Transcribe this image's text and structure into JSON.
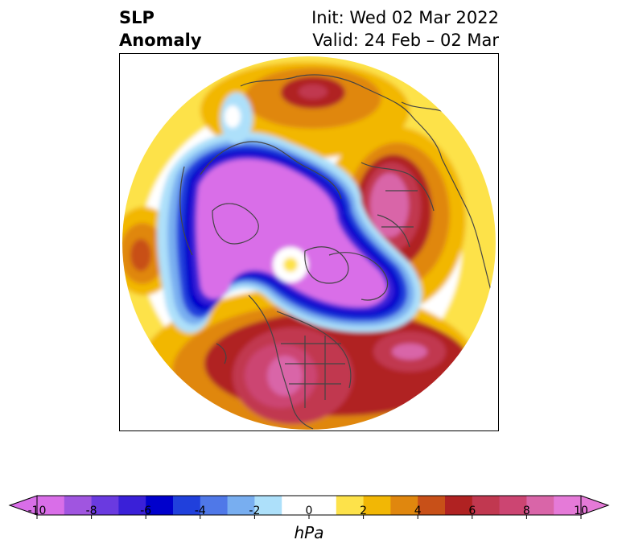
{
  "title": {
    "left_line1": "SLP",
    "left_line2": "Anomaly",
    "right_line1": "Init: Wed 02 Mar 2022",
    "right_line2": "Valid: 24 Feb – 02 Mar"
  },
  "colorbar": {
    "units": "hPa",
    "ticks": [
      "-10",
      "-8",
      "-6",
      "-4",
      "-2",
      "0",
      "2",
      "4",
      "6",
      "8",
      "10"
    ],
    "bin_colors": [
      "#d96ee8",
      "#a055e0",
      "#6a3ae0",
      "#3a20d8",
      "#0000cc",
      "#2040dc",
      "#4f78e8",
      "#78aef0",
      "#ade0fa",
      "#ffffff",
      "#ffffff",
      "#fde24a",
      "#f2b705",
      "#e0870e",
      "#c85018",
      "#b02222",
      "#c13850",
      "#cc4572",
      "#d965a8",
      "#e57ad8"
    ],
    "extend": "both"
  },
  "map": {
    "projection": "north-polar-stereographic",
    "colors": {
      "strong_negative": "#d96ee8",
      "negative_mid": "#0000cc",
      "negative_light": "#ade0fa",
      "positive_light": "#fde24a",
      "positive_mid": "#f2b705",
      "positive_orange": "#e0870e",
      "positive_red": "#b02222",
      "positive_strong": "#d965a8",
      "coastline": "#444444"
    }
  }
}
